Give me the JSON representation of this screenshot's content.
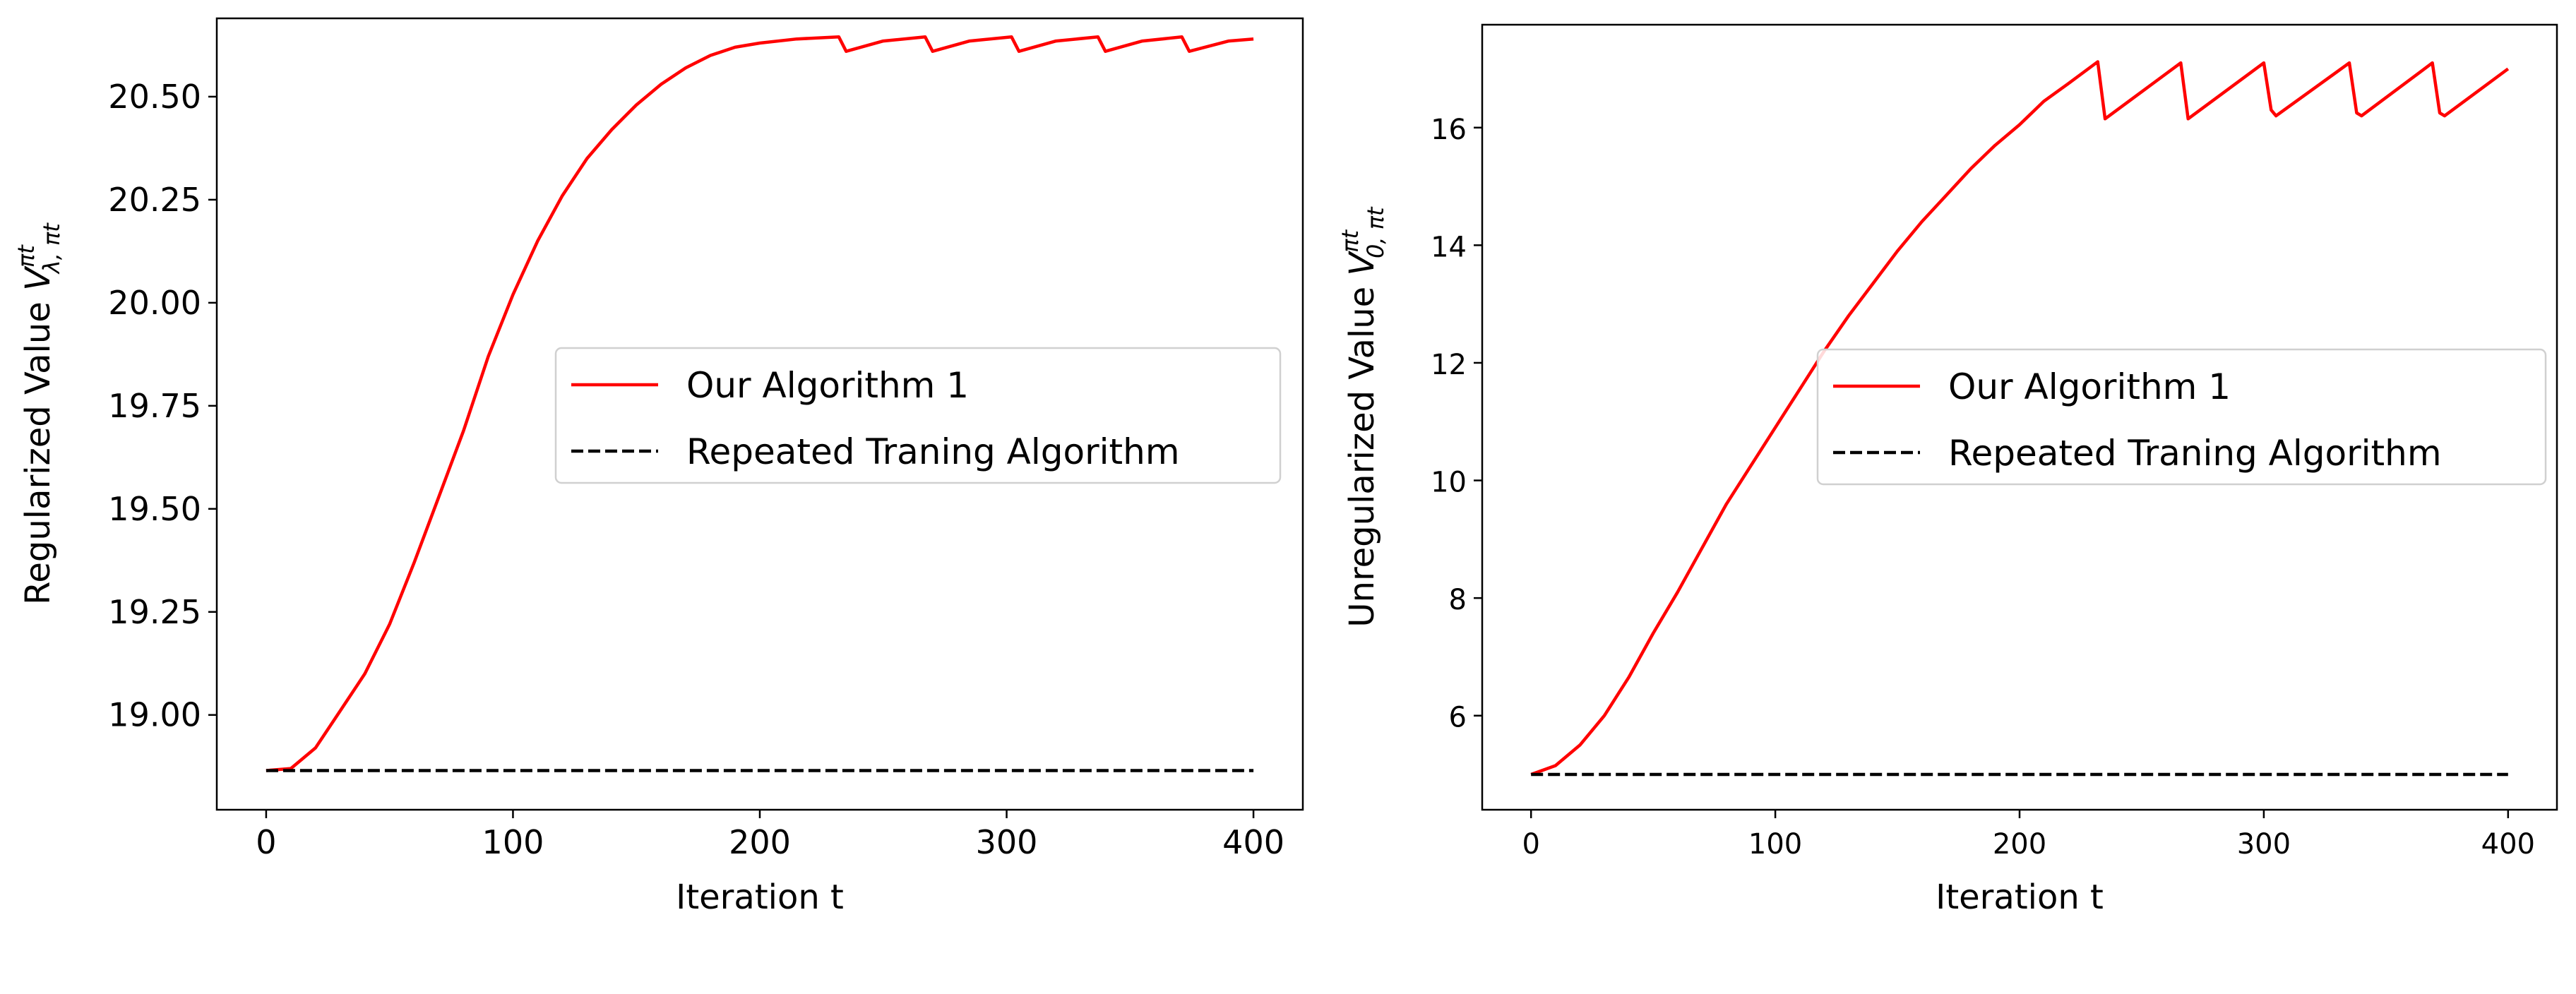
{
  "chart_data": [
    {
      "type": "line",
      "xlabel": "Iteration t",
      "ylabel": {
        "main": "Regularized Value ",
        "symbol": "V",
        "sup": "πt",
        "sub": "λ, πt"
      },
      "xlim": [
        -20,
        420
      ],
      "ylim": [
        18.77,
        20.69
      ],
      "xticks": [
        0,
        100,
        200,
        300,
        400
      ],
      "yticks": [
        19.0,
        19.25,
        19.5,
        19.75,
        20.0,
        20.25,
        20.5
      ],
      "ytick_labels": [
        "19.00",
        "19.25",
        "19.50",
        "19.75",
        "20.00",
        "20.25",
        "20.50"
      ],
      "grid": false,
      "legend_position": "center-right",
      "series": [
        {
          "name": "Our Algorithm 1",
          "color": "#ff0000",
          "style": "solid",
          "x": [
            0,
            10,
            20,
            30,
            40,
            50,
            60,
            70,
            80,
            90,
            100,
            110,
            120,
            130,
            140,
            150,
            160,
            170,
            180,
            190,
            200,
            215,
            232,
            235,
            250,
            267,
            270,
            285,
            302,
            305,
            320,
            337,
            340,
            355,
            371,
            374,
            390,
            400
          ],
          "y": [
            18.865,
            18.87,
            18.92,
            19.01,
            19.1,
            19.22,
            19.37,
            19.53,
            19.69,
            19.87,
            20.02,
            20.15,
            20.26,
            20.35,
            20.42,
            20.48,
            20.53,
            20.57,
            20.6,
            20.62,
            20.63,
            20.64,
            20.645,
            20.61,
            20.635,
            20.645,
            20.61,
            20.635,
            20.645,
            20.61,
            20.635,
            20.645,
            20.61,
            20.635,
            20.645,
            20.61,
            20.635,
            20.64
          ]
        },
        {
          "name": "Repeated Traning Algorithm",
          "color": "#000000",
          "style": "dashed",
          "x": [
            0,
            400
          ],
          "y": [
            18.865,
            18.865
          ]
        }
      ]
    },
    {
      "type": "line",
      "xlabel": "Iteration t",
      "ylabel": {
        "main": "Unregularized Value ",
        "symbol": "V",
        "sup": "πt",
        "sub": "0, πt"
      },
      "xlim": [
        -20,
        420
      ],
      "ylim": [
        4.4,
        17.75
      ],
      "xticks": [
        0,
        100,
        200,
        300,
        400
      ],
      "yticks": [
        6,
        8,
        10,
        12,
        14,
        16
      ],
      "ytick_labels": [
        "6",
        "8",
        "10",
        "12",
        "14",
        "16"
      ],
      "grid": false,
      "legend_position": "center-right",
      "series": [
        {
          "name": "Our Algorithm 1",
          "color": "#ff0000",
          "style": "solid",
          "x": [
            0,
            10,
            20,
            30,
            40,
            50,
            60,
            70,
            80,
            90,
            100,
            110,
            120,
            130,
            140,
            150,
            160,
            170,
            180,
            190,
            200,
            210,
            220,
            232,
            235,
            266,
            269,
            300,
            303,
            305,
            335,
            338,
            340,
            369,
            372,
            374,
            400
          ],
          "y": [
            5.0,
            5.15,
            5.5,
            6.0,
            6.65,
            7.4,
            8.1,
            8.85,
            9.6,
            10.25,
            10.9,
            11.55,
            12.2,
            12.8,
            13.35,
            13.9,
            14.4,
            14.85,
            15.3,
            15.7,
            16.05,
            16.45,
            16.75,
            17.12,
            16.15,
            17.1,
            16.15,
            17.1,
            16.3,
            16.2,
            17.1,
            16.25,
            16.2,
            17.1,
            16.25,
            16.2,
            17.0
          ]
        },
        {
          "name": "Repeated Traning Algorithm",
          "color": "#000000",
          "style": "dashed",
          "x": [
            0,
            400
          ],
          "y": [
            5.0,
            5.0
          ]
        }
      ]
    }
  ]
}
